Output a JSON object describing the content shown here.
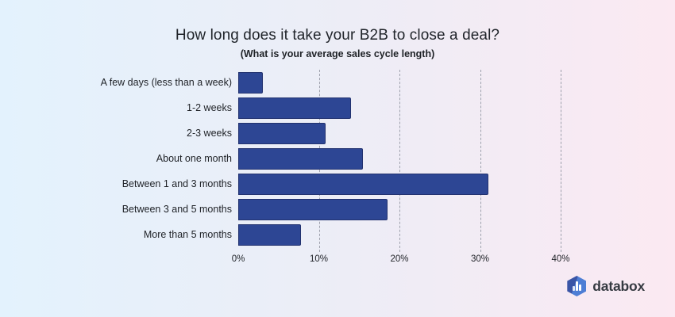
{
  "header": {
    "title": "How long does it take your B2B to close a deal?",
    "subtitle": "(What is your average sales cycle length)"
  },
  "chart_data": {
    "type": "bar",
    "orientation": "horizontal",
    "title": "How long does it take your B2B to close a deal?",
    "subtitle": "(What is your average sales cycle length)",
    "categories": [
      "A few days (less than a week)",
      "1-2 weeks",
      "2-3 weeks",
      "About one month",
      "Between 1 and 3 months",
      "Between 3 and 5 months",
      "More than 5 months"
    ],
    "values": [
      3.1,
      14,
      10.8,
      15.5,
      31,
      18.5,
      7.8
    ],
    "value_unit": "%",
    "xlim": [
      0,
      40
    ],
    "x_ticks": [
      "0%",
      "10%",
      "20%",
      "30%",
      "40%"
    ],
    "x_tick_values": [
      0,
      10,
      20,
      30,
      40
    ],
    "grid": "dashed-vertical",
    "legend": "none",
    "xlabel": "",
    "ylabel": ""
  },
  "colors": {
    "background_left": "#e3f2fd",
    "background_mid": "#ededf6",
    "background_right": "#fbe9f2",
    "bar": "#2d4694",
    "gridline": "#9ea1ad",
    "title_text": "#1f2329",
    "label_text": "#1e2126"
  },
  "branding": {
    "logo_text": "databox",
    "logo_icon": "databox-hexagon-bars-icon"
  }
}
